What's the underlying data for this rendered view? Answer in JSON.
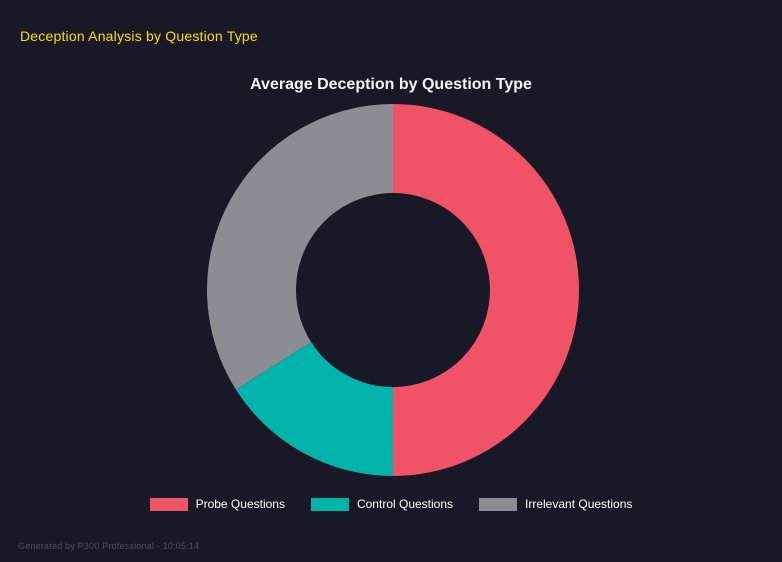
{
  "header": {
    "title": "Deception Analysis by Question Type"
  },
  "chart_data": {
    "type": "pie",
    "variant": "doughnut",
    "title": "Average Deception by Question Type",
    "labels": [
      "Probe Questions",
      "Control Questions",
      "Irrelevant Questions"
    ],
    "values": [
      50,
      16,
      34
    ],
    "colors": [
      "#ef5365",
      "#00b4aa",
      "#8c8c94"
    ],
    "legend_position": "bottom",
    "start_angle_deg": 0,
    "direction": "clockwise",
    "inner_radius_ratio": 0.52
  },
  "footer": {
    "text": "Generated by P300 Professional - 10:05:14"
  },
  "theme": {
    "background": "#181827",
    "heading_color": "#ffdf00",
    "chart_title_color": "#f5f5f7",
    "legend_text_color": "#ffffff",
    "footer_text_color": "#4d4d5e"
  }
}
